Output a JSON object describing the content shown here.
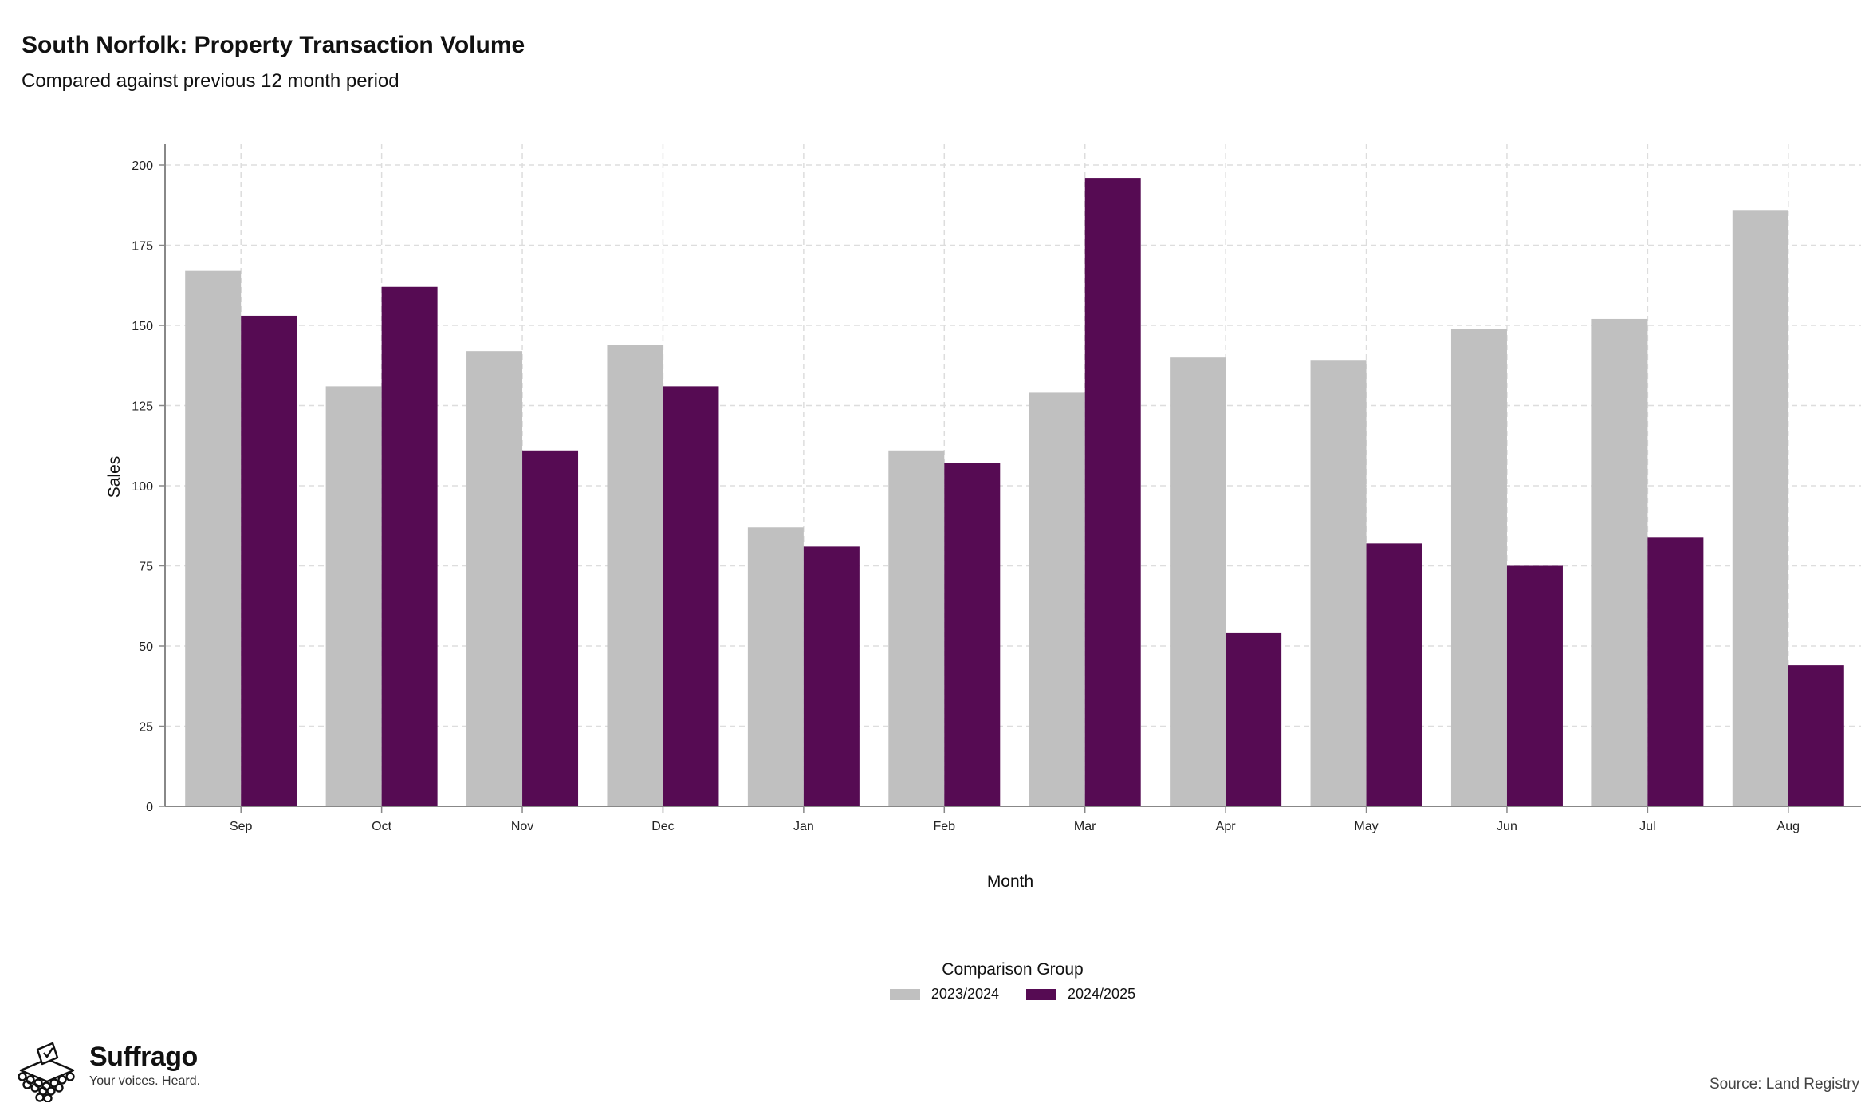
{
  "title": "South Norfolk: Property Transaction Volume",
  "subtitle": "Compared against previous 12 month period",
  "legend": {
    "title": "Comparison Group"
  },
  "brand": {
    "name": "Suffrago",
    "tagline": "Your voices. Heard."
  },
  "source": "Source: Land Registry",
  "colors": {
    "series_a": "#c0c0c0",
    "series_b": "#560b53",
    "grid": "#dddddd",
    "axis": "#888888"
  },
  "chart_data": {
    "type": "bar",
    "title": "South Norfolk: Property Transaction Volume",
    "subtitle": "Compared against previous 12 month period",
    "xlabel": "Month",
    "ylabel": "Sales",
    "categories": [
      "Sep",
      "Oct",
      "Nov",
      "Dec",
      "Jan",
      "Feb",
      "Mar",
      "Apr",
      "May",
      "Jun",
      "Jul",
      "Aug"
    ],
    "series": [
      {
        "name": "2023/2024",
        "values": [
          167,
          131,
          142,
          144,
          87,
          111,
          129,
          140,
          139,
          149,
          152,
          186
        ]
      },
      {
        "name": "2024/2025",
        "values": [
          153,
          162,
          111,
          131,
          81,
          107,
          196,
          54,
          82,
          75,
          84,
          44
        ]
      }
    ],
    "ylim": [
      0,
      200
    ],
    "yticks": [
      0,
      25,
      50,
      75,
      100,
      125,
      150,
      175,
      200
    ],
    "grid": true,
    "legend_position": "bottom"
  }
}
